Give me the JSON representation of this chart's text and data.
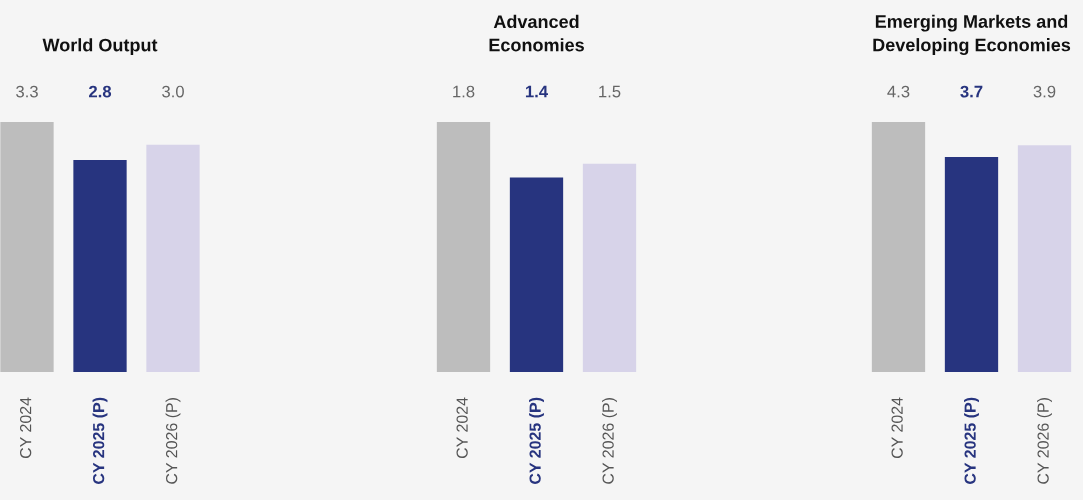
{
  "chart_data": [
    {
      "type": "bar",
      "title": "World Output",
      "categories": [
        "CY 2024",
        "CY 2025 (P)",
        "CY 2026 (P)"
      ],
      "values": [
        3.3,
        2.8,
        3.0
      ],
      "value_labels": [
        "3.3",
        "2.8",
        "3.0"
      ],
      "colors": [
        "#bdbdbd",
        "#27347f",
        "#d7d3e9"
      ],
      "tick_labels": "x"
    },
    {
      "type": "bar",
      "title": "Advanced\nEconomies",
      "categories": [
        "CY 2024",
        "CY 2025 (P)",
        "CY 2026 (P)"
      ],
      "values": [
        1.8,
        1.4,
        1.5
      ],
      "value_labels": [
        "1.8",
        "1.4",
        "1.5"
      ],
      "colors": [
        "#bdbdbd",
        "#27347f",
        "#d7d3e9"
      ],
      "tick_labels": "x"
    },
    {
      "type": "bar",
      "title": "Emerging Markets and\nDeveloping Economies",
      "categories": [
        "CY 2024",
        "CY 2025 (P)",
        "CY 2026 (P)"
      ],
      "values": [
        4.3,
        3.7,
        3.9
      ],
      "value_labels": [
        "4.3",
        "3.7",
        "3.9"
      ],
      "colors": [
        "#bdbdbd",
        "#27347f",
        "#d7d3e9"
      ],
      "tick_labels": "x"
    }
  ]
}
